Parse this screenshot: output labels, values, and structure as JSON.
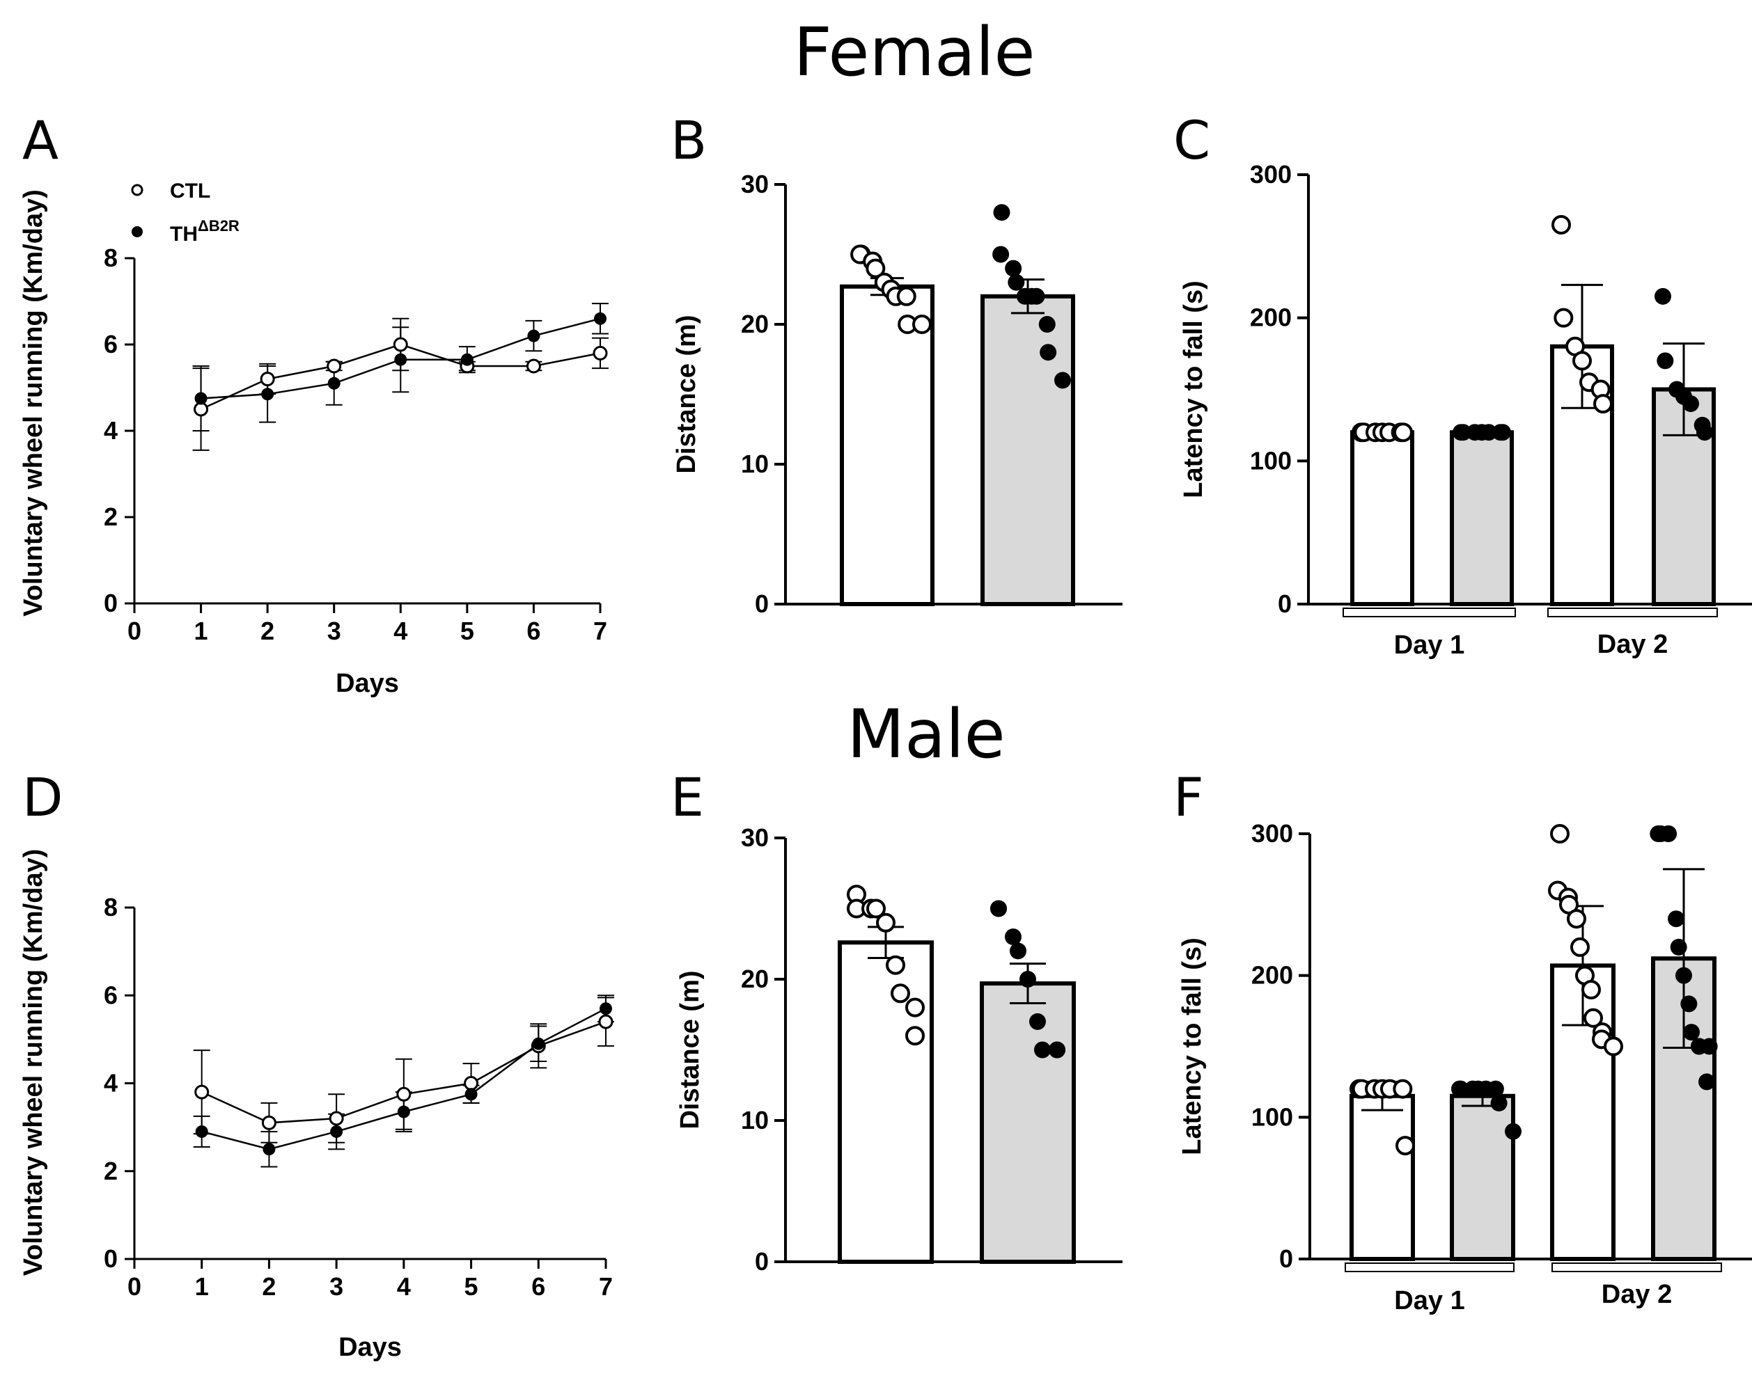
{
  "figure": {
    "female_title": "Female",
    "male_title": "Male"
  },
  "colors": {
    "ink": "#000000",
    "gray_bar": "#d9d9d9",
    "white": "#ffffff"
  },
  "legend": {
    "ctl": "CTL",
    "th_base": "TH",
    "th_sup": "ΔB2R"
  },
  "chart_data": [
    {
      "panel": "A",
      "type": "line",
      "sex": "Female",
      "xlabel": "Days",
      "ylabel": "Voluntary wheel running (Km/day)",
      "xlim": [
        0,
        7
      ],
      "ylim": [
        0,
        8
      ],
      "x_ticks": [
        "0",
        "1",
        "2",
        "3",
        "4",
        "5",
        "6",
        "7"
      ],
      "y_ticks": [
        "0",
        "2",
        "4",
        "6",
        "8"
      ],
      "series": [
        {
          "name": "CTL",
          "marker": "open",
          "x": [
            1,
            2,
            3,
            4,
            5,
            6,
            7
          ],
          "y": [
            4.5,
            5.2,
            5.5,
            6.0,
            5.5,
            5.5,
            5.8
          ],
          "err": [
            0.95,
            0.35,
            0.1,
            0.6,
            0.1,
            0.1,
            0.35
          ]
        },
        {
          "name": "THΔB2R",
          "marker": "filled",
          "x": [
            1,
            2,
            3,
            4,
            5,
            6,
            7
          ],
          "y": [
            4.75,
            4.85,
            5.1,
            5.65,
            5.65,
            6.2,
            6.6
          ],
          "err": [
            0.75,
            0.65,
            0.5,
            0.75,
            0.3,
            0.35,
            0.35
          ]
        }
      ]
    },
    {
      "panel": "B",
      "type": "bar",
      "sex": "Female",
      "ylabel": "Distance (m)",
      "ylim": [
        0,
        30
      ],
      "y_ticks": [
        "0",
        "10",
        "20",
        "30"
      ],
      "bars": [
        {
          "group": "CTL",
          "fill": "white",
          "mean": 22.7,
          "sem": 0.6,
          "points": [
            25,
            25,
            24.5,
            24,
            23,
            22.5,
            22,
            22,
            20,
            20
          ]
        },
        {
          "group": "THΔB2R",
          "fill": "gray",
          "mean": 22.0,
          "sem": 1.2,
          "points": [
            28,
            25,
            24,
            23,
            22,
            22,
            22,
            20,
            18,
            16
          ]
        }
      ]
    },
    {
      "panel": "C",
      "type": "bar",
      "sex": "Female",
      "ylabel": "Latency to fall (s)",
      "ylim": [
        0,
        300
      ],
      "y_ticks": [
        "0",
        "100",
        "200",
        "300"
      ],
      "groups": [
        "Day 1",
        "Day 2"
      ],
      "bars": [
        {
          "group": "Day 1",
          "genotype": "CTL",
          "fill": "white",
          "mean": 120,
          "sd": 0,
          "points": [
            120,
            120,
            120,
            120,
            120,
            120,
            120
          ]
        },
        {
          "group": "Day 1",
          "genotype": "THΔB2R",
          "fill": "gray",
          "mean": 120,
          "sd": 0,
          "points": [
            120,
            120,
            120,
            120,
            120,
            120,
            120
          ]
        },
        {
          "group": "Day 2",
          "genotype": "CTL",
          "fill": "white",
          "mean": 180,
          "sd": 43,
          "points": [
            265,
            200,
            180,
            170,
            155,
            150,
            140
          ]
        },
        {
          "group": "Day 2",
          "genotype": "THΔB2R",
          "fill": "gray",
          "mean": 150,
          "sd": 32,
          "points": [
            215,
            170,
            150,
            145,
            140,
            125,
            120
          ]
        }
      ]
    },
    {
      "panel": "D",
      "type": "line",
      "sex": "Male",
      "xlabel": "Days",
      "ylabel": "Voluntary wheel running (Km/day)",
      "xlim": [
        0,
        7
      ],
      "ylim": [
        0,
        8
      ],
      "x_ticks": [
        "0",
        "1",
        "2",
        "3",
        "4",
        "5",
        "6",
        "7"
      ],
      "y_ticks": [
        "0",
        "2",
        "4",
        "6",
        "8"
      ],
      "series": [
        {
          "name": "CTL",
          "marker": "open",
          "x": [
            1,
            2,
            3,
            4,
            5,
            6,
            7
          ],
          "y": [
            3.8,
            3.1,
            3.2,
            3.75,
            4.0,
            4.85,
            5.4
          ],
          "err": [
            0.95,
            0.45,
            0.55,
            0.8,
            0.45,
            0.5,
            0.55
          ]
        },
        {
          "name": "THΔB2R",
          "marker": "filled",
          "x": [
            1,
            2,
            3,
            4,
            5,
            6,
            7
          ],
          "y": [
            2.9,
            2.5,
            2.9,
            3.35,
            3.75,
            4.9,
            5.7
          ],
          "err": [
            0.35,
            0.4,
            0.4,
            0.45,
            0.2,
            0.4,
            0.3
          ]
        }
      ]
    },
    {
      "panel": "E",
      "type": "bar",
      "sex": "Male",
      "ylabel": "Distance (m)",
      "ylim": [
        0,
        30
      ],
      "y_ticks": [
        "0",
        "10",
        "20",
        "30"
      ],
      "bars": [
        {
          "group": "CTL",
          "fill": "white",
          "mean": 22.6,
          "sem": 1.1,
          "points": [
            26,
            25,
            25,
            25,
            24,
            21,
            19,
            18,
            16
          ]
        },
        {
          "group": "THΔB2R",
          "fill": "gray",
          "mean": 19.7,
          "sem": 1.4,
          "points": [
            25,
            25,
            23,
            22,
            20,
            17,
            15,
            15,
            15
          ]
        }
      ]
    },
    {
      "panel": "F",
      "type": "bar",
      "sex": "Male",
      "ylabel": "Latency to fall (s)",
      "ylim": [
        0,
        300
      ],
      "y_ticks": [
        "0",
        "100",
        "200",
        "300"
      ],
      "groups": [
        "Day 1",
        "Day 2"
      ],
      "bars": [
        {
          "group": "Day 1",
          "genotype": "CTL",
          "fill": "white",
          "mean": 115,
          "sd": 10,
          "points": [
            120,
            120,
            120,
            120,
            120,
            120,
            80
          ]
        },
        {
          "group": "Day 1",
          "genotype": "THΔB2R",
          "fill": "gray",
          "mean": 115,
          "sd": 7,
          "points": [
            120,
            120,
            120,
            120,
            120,
            120,
            110,
            90
          ]
        },
        {
          "group": "Day 2",
          "genotype": "CTL",
          "fill": "white",
          "mean": 207,
          "sd": 42,
          "points": [
            300,
            260,
            255,
            250,
            240,
            220,
            200,
            190,
            170,
            160,
            155,
            150
          ]
        },
        {
          "group": "Day 2",
          "genotype": "THΔB2R",
          "fill": "gray",
          "mean": 212,
          "sd": 63,
          "points": [
            300,
            300,
            300,
            300,
            240,
            220,
            200,
            180,
            160,
            150,
            150,
            150,
            125
          ]
        }
      ]
    }
  ]
}
